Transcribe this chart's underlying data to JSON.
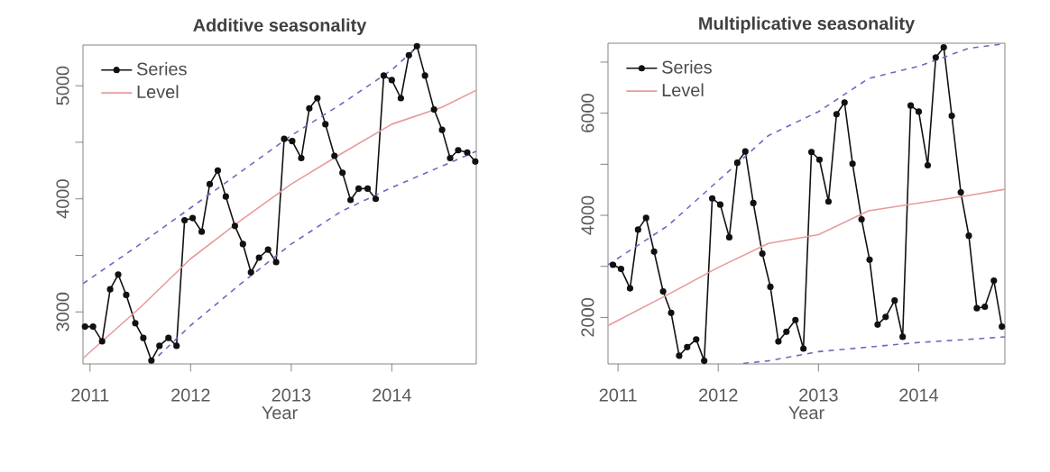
{
  "chart_data": [
    {
      "type": "line",
      "title": "Additive seasonality",
      "xlabel": "Year",
      "legend": "top left",
      "x": [
        2010.95,
        2011.03,
        2011.12,
        2011.2,
        2011.28,
        2011.36,
        2011.45,
        2011.53,
        2011.61,
        2011.69,
        2011.78,
        2011.86,
        2011.94,
        2012.02,
        2012.11,
        2012.19,
        2012.27,
        2012.35,
        2012.44,
        2012.52,
        2012.6,
        2012.68,
        2012.77,
        2012.85,
        2012.93,
        2013.01,
        2013.1,
        2013.18,
        2013.26,
        2013.34,
        2013.43,
        2013.51,
        2013.59,
        2013.67,
        2013.76,
        2013.84,
        2013.92,
        2014.0,
        2014.09,
        2014.17,
        2014.25,
        2014.33,
        2014.42,
        2014.5,
        2014.58,
        2014.66,
        2014.75,
        2014.83
      ],
      "xlim": [
        2010.93,
        2014.84
      ],
      "ylim": [
        2540,
        5360
      ],
      "xticks": [
        2011,
        2012,
        2013,
        2014
      ],
      "yticks": [
        3000,
        {
          "value": 3500,
          "label": null
        },
        4000,
        {
          "value": 4500,
          "label": null
        },
        5000
      ],
      "series": [
        {
          "name": "Series",
          "color": "#111111",
          "marker": "circle",
          "values": [
            2870,
            2870,
            2740,
            3200,
            3330,
            3150,
            2900,
            2770,
            2570,
            2700,
            2770,
            2700,
            3810,
            3830,
            3710,
            4130,
            4250,
            4020,
            3760,
            3600,
            3350,
            3480,
            3550,
            3440,
            4530,
            4510,
            4360,
            4800,
            4890,
            4660,
            4380,
            4230,
            3990,
            4090,
            4090,
            4000,
            5090,
            5050,
            4890,
            5270,
            5350,
            5090,
            4790,
            4610,
            4360,
            4430,
            4410,
            4330
          ]
        },
        {
          "name": "Level",
          "color": "#e89a9a",
          "x": [
            2010.93,
            2011.5,
            2012,
            2012.5,
            2013,
            2013.5,
            2014,
            2014.5,
            2014.84
          ],
          "values": [
            2590,
            3040,
            3470,
            3810,
            4130,
            4400,
            4660,
            4810,
            4960
          ]
        },
        {
          "color": "#6a6ac0",
          "line_style": "dashed",
          "x": [
            2010.93,
            2011.5,
            2012,
            2012.5,
            2013,
            2013.5,
            2014,
            2014.26
          ],
          "values": [
            3250,
            3600,
            3920,
            4240,
            4560,
            4840,
            5140,
            5350
          ]
        },
        {
          "color": "#6a6ac0",
          "line_style": "dashed",
          "x": [
            2011.6,
            2012,
            2012.5,
            2013,
            2013.5,
            2014,
            2014.5,
            2014.84
          ],
          "values": [
            2545,
            2880,
            3250,
            3600,
            3890,
            4100,
            4290,
            4420
          ]
        }
      ]
    },
    {
      "type": "line",
      "title": "Multiplicative seasonality",
      "xlabel": "Year",
      "legend": "top left",
      "x": [
        2010.95,
        2011.03,
        2011.12,
        2011.2,
        2011.28,
        2011.36,
        2011.45,
        2011.53,
        2011.61,
        2011.69,
        2011.78,
        2011.86,
        2011.94,
        2012.02,
        2012.11,
        2012.19,
        2012.27,
        2012.35,
        2012.44,
        2012.52,
        2012.6,
        2012.68,
        2012.77,
        2012.85,
        2012.93,
        2013.01,
        2013.1,
        2013.18,
        2013.26,
        2013.34,
        2013.43,
        2013.51,
        2013.59,
        2013.67,
        2013.76,
        2013.84,
        2013.92,
        2014.0,
        2014.09,
        2014.17,
        2014.25,
        2014.33,
        2014.42,
        2014.5,
        2014.58,
        2014.66,
        2014.75,
        2014.83
      ],
      "xlim": [
        2010.9,
        2014.86
      ],
      "ylim": [
        1090,
        7370
      ],
      "xticks": [
        2011,
        2012,
        2013,
        2014
      ],
      "yticks": [
        2000,
        {
          "value": 3000,
          "label": null
        },
        4000,
        {
          "value": 5000,
          "label": null
        },
        6000,
        {
          "value": 7000,
          "label": null
        }
      ],
      "series": [
        {
          "name": "Series",
          "color": "#111111",
          "marker": "circle",
          "values": [
            3030,
            2950,
            2570,
            3720,
            3950,
            3290,
            2510,
            2090,
            1250,
            1420,
            1570,
            1150,
            4330,
            4210,
            3570,
            5030,
            5250,
            4240,
            3250,
            2600,
            1530,
            1720,
            1950,
            1390,
            5240,
            5090,
            4270,
            5980,
            6210,
            5010,
            3920,
            3130,
            1860,
            2010,
            2330,
            1620,
            6150,
            6030,
            4980,
            7090,
            7290,
            5950,
            4450,
            3600,
            2180,
            2210,
            2720,
            1820
          ]
        },
        {
          "name": "Level",
          "color": "#e89a9a",
          "x": [
            2010.9,
            2011.5,
            2012,
            2012.5,
            2013,
            2013.5,
            2014,
            2014.5,
            2014.86
          ],
          "values": [
            1840,
            2450,
            2980,
            3450,
            3620,
            4090,
            4240,
            4390,
            4510
          ]
        },
        {
          "color": "#6a6ac0",
          "line_style": "dashed",
          "x": [
            2010.9,
            2011.5,
            2012,
            2012.5,
            2013,
            2013.5,
            2014,
            2014.5,
            2014.86
          ],
          "values": [
            3030,
            3800,
            4680,
            5560,
            6030,
            6680,
            6920,
            7270,
            7360
          ]
        },
        {
          "color": "#6a6ac0",
          "line_style": "dashed",
          "x": [
            2012.25,
            2012.5,
            2013,
            2013.5,
            2014,
            2014.5,
            2014.86
          ],
          "values": [
            1100,
            1150,
            1330,
            1420,
            1510,
            1570,
            1620
          ]
        }
      ]
    }
  ]
}
